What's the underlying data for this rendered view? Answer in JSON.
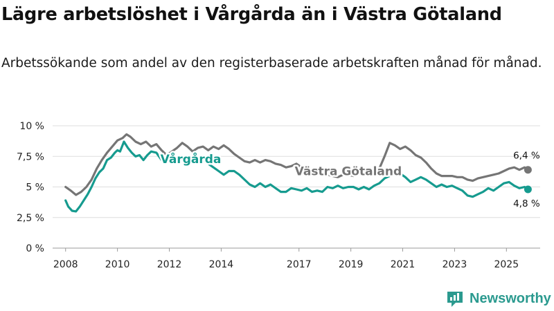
{
  "title": "Lägre arbetslöshet i Vårgårda än i Västra Götaland",
  "subtitle": "Arbetssökande som andel av den registerbaserade arbetskraften månad för månad.",
  "brand": {
    "name": "Newsworthy",
    "color": "#2b9a8f"
  },
  "chart_data": {
    "type": "line",
    "title": "Lägre arbetslöshet i Vårgårda än i Västra Götaland",
    "xlabel": "",
    "ylabel": "",
    "ylim": [
      0,
      10
    ],
    "xlim": [
      2007.5,
      2026.3
    ],
    "grid": "horizontal",
    "y_ticks": [
      {
        "value": 0,
        "label": "0 %"
      },
      {
        "value": 2.5,
        "label": "2,5 %"
      },
      {
        "value": 5,
        "label": "5 %"
      },
      {
        "value": 7.5,
        "label": "7,5 %"
      },
      {
        "value": 10,
        "label": "10 %"
      }
    ],
    "x_ticks": [
      {
        "value": 2008,
        "label": "2008"
      },
      {
        "value": 2010,
        "label": "2010"
      },
      {
        "value": 2012,
        "label": "2012"
      },
      {
        "value": 2014,
        "label": "2014"
      },
      {
        "value": 2017,
        "label": "2017"
      },
      {
        "value": 2019,
        "label": "2019"
      },
      {
        "value": 2021,
        "label": "2021"
      },
      {
        "value": 2023,
        "label": "2023"
      },
      {
        "value": 2025,
        "label": "2025"
      }
    ],
    "series": [
      {
        "name": "Västra Götaland",
        "color": "#757575",
        "end_label": "6,4 %",
        "points": [
          [
            2008.0,
            5.0
          ],
          [
            2008.2,
            4.7
          ],
          [
            2008.4,
            4.35
          ],
          [
            2008.6,
            4.6
          ],
          [
            2008.8,
            5.0
          ],
          [
            2009.0,
            5.6
          ],
          [
            2009.2,
            6.5
          ],
          [
            2009.4,
            7.2
          ],
          [
            2009.6,
            7.8
          ],
          [
            2009.8,
            8.3
          ],
          [
            2010.0,
            8.8
          ],
          [
            2010.2,
            9.0
          ],
          [
            2010.35,
            9.3
          ],
          [
            2010.5,
            9.1
          ],
          [
            2010.7,
            8.7
          ],
          [
            2010.9,
            8.5
          ],
          [
            2011.1,
            8.7
          ],
          [
            2011.3,
            8.3
          ],
          [
            2011.5,
            8.5
          ],
          [
            2011.7,
            8.0
          ],
          [
            2011.9,
            7.6
          ],
          [
            2012.1,
            7.9
          ],
          [
            2012.3,
            8.2
          ],
          [
            2012.5,
            8.6
          ],
          [
            2012.7,
            8.3
          ],
          [
            2012.9,
            7.9
          ],
          [
            2013.1,
            8.2
          ],
          [
            2013.3,
            8.3
          ],
          [
            2013.5,
            8.0
          ],
          [
            2013.7,
            8.3
          ],
          [
            2013.9,
            8.1
          ],
          [
            2014.1,
            8.4
          ],
          [
            2014.3,
            8.1
          ],
          [
            2014.5,
            7.7
          ],
          [
            2014.7,
            7.4
          ],
          [
            2014.9,
            7.1
          ],
          [
            2015.1,
            7.0
          ],
          [
            2015.3,
            7.2
          ],
          [
            2015.5,
            7.0
          ],
          [
            2015.7,
            7.2
          ],
          [
            2015.9,
            7.1
          ],
          [
            2016.1,
            6.9
          ],
          [
            2016.3,
            6.8
          ],
          [
            2016.5,
            6.6
          ],
          [
            2016.7,
            6.7
          ],
          [
            2016.9,
            6.9
          ],
          [
            2017.1,
            6.6
          ],
          [
            2017.3,
            6.5
          ],
          [
            2017.5,
            6.4
          ],
          [
            2017.7,
            6.3
          ],
          [
            2017.9,
            6.2
          ],
          [
            2018.1,
            6.0
          ],
          [
            2018.3,
            5.9
          ],
          [
            2018.5,
            5.8
          ],
          [
            2018.7,
            6.0
          ],
          [
            2018.9,
            6.0
          ],
          [
            2019.1,
            5.9
          ],
          [
            2019.3,
            6.2
          ],
          [
            2019.5,
            6.3
          ],
          [
            2019.7,
            6.5
          ],
          [
            2019.9,
            6.4
          ],
          [
            2020.1,
            6.5
          ],
          [
            2020.3,
            7.5
          ],
          [
            2020.5,
            8.6
          ],
          [
            2020.7,
            8.4
          ],
          [
            2020.9,
            8.1
          ],
          [
            2021.1,
            8.3
          ],
          [
            2021.3,
            8.0
          ],
          [
            2021.5,
            7.6
          ],
          [
            2021.7,
            7.4
          ],
          [
            2021.9,
            7.0
          ],
          [
            2022.1,
            6.5
          ],
          [
            2022.3,
            6.1
          ],
          [
            2022.5,
            5.9
          ],
          [
            2022.7,
            5.9
          ],
          [
            2022.9,
            5.9
          ],
          [
            2023.1,
            5.8
          ],
          [
            2023.3,
            5.8
          ],
          [
            2023.5,
            5.6
          ],
          [
            2023.7,
            5.5
          ],
          [
            2023.9,
            5.7
          ],
          [
            2024.1,
            5.8
          ],
          [
            2024.3,
            5.9
          ],
          [
            2024.5,
            6.0
          ],
          [
            2024.7,
            6.1
          ],
          [
            2024.9,
            6.3
          ],
          [
            2025.1,
            6.5
          ],
          [
            2025.3,
            6.6
          ],
          [
            2025.5,
            6.4
          ],
          [
            2025.7,
            6.6
          ],
          [
            2025.83,
            6.4
          ]
        ]
      },
      {
        "name": "Vårgårda",
        "color": "#169b8f",
        "end_label": "4,8 %",
        "points": [
          [
            2008.0,
            3.9
          ],
          [
            2008.1,
            3.4
          ],
          [
            2008.25,
            3.05
          ],
          [
            2008.4,
            3.0
          ],
          [
            2008.55,
            3.4
          ],
          [
            2008.7,
            3.9
          ],
          [
            2008.85,
            4.4
          ],
          [
            2009.0,
            5.0
          ],
          [
            2009.15,
            5.7
          ],
          [
            2009.3,
            6.2
          ],
          [
            2009.45,
            6.5
          ],
          [
            2009.6,
            7.2
          ],
          [
            2009.75,
            7.4
          ],
          [
            2009.9,
            7.8
          ],
          [
            2010.0,
            8.0
          ],
          [
            2010.1,
            7.9
          ],
          [
            2010.25,
            8.7
          ],
          [
            2010.4,
            8.2
          ],
          [
            2010.55,
            7.8
          ],
          [
            2010.7,
            7.5
          ],
          [
            2010.85,
            7.6
          ],
          [
            2011.0,
            7.2
          ],
          [
            2011.15,
            7.6
          ],
          [
            2011.3,
            7.9
          ],
          [
            2011.5,
            7.8
          ],
          [
            2011.7,
            7.2
          ],
          [
            2011.9,
            7.1
          ],
          [
            2012.1,
            7.3
          ],
          [
            2012.3,
            7.4
          ],
          [
            2012.5,
            7.2
          ],
          [
            2012.7,
            7.0
          ],
          [
            2012.9,
            7.0
          ],
          [
            2013.1,
            7.3
          ],
          [
            2013.3,
            7.2
          ],
          [
            2013.5,
            6.9
          ],
          [
            2013.7,
            6.6
          ],
          [
            2013.9,
            6.3
          ],
          [
            2014.1,
            6.0
          ],
          [
            2014.3,
            6.3
          ],
          [
            2014.5,
            6.3
          ],
          [
            2014.7,
            6.0
          ],
          [
            2014.9,
            5.6
          ],
          [
            2015.1,
            5.2
          ],
          [
            2015.3,
            5.0
          ],
          [
            2015.5,
            5.3
          ],
          [
            2015.7,
            5.0
          ],
          [
            2015.9,
            5.2
          ],
          [
            2016.1,
            4.9
          ],
          [
            2016.3,
            4.6
          ],
          [
            2016.5,
            4.6
          ],
          [
            2016.7,
            4.9
          ],
          [
            2016.9,
            4.8
          ],
          [
            2017.1,
            4.7
          ],
          [
            2017.3,
            4.9
          ],
          [
            2017.5,
            4.6
          ],
          [
            2017.7,
            4.7
          ],
          [
            2017.9,
            4.6
          ],
          [
            2018.1,
            5.0
          ],
          [
            2018.3,
            4.9
          ],
          [
            2018.5,
            5.1
          ],
          [
            2018.7,
            4.9
          ],
          [
            2018.9,
            5.0
          ],
          [
            2019.1,
            5.0
          ],
          [
            2019.3,
            4.8
          ],
          [
            2019.5,
            5.0
          ],
          [
            2019.7,
            4.8
          ],
          [
            2019.9,
            5.1
          ],
          [
            2020.1,
            5.3
          ],
          [
            2020.3,
            5.7
          ],
          [
            2020.5,
            5.9
          ],
          [
            2020.7,
            6.0
          ],
          [
            2020.9,
            6.1
          ],
          [
            2021.1,
            5.8
          ],
          [
            2021.3,
            5.4
          ],
          [
            2021.5,
            5.6
          ],
          [
            2021.7,
            5.8
          ],
          [
            2021.9,
            5.6
          ],
          [
            2022.1,
            5.3
          ],
          [
            2022.3,
            5.0
          ],
          [
            2022.5,
            5.2
          ],
          [
            2022.7,
            5.0
          ],
          [
            2022.9,
            5.1
          ],
          [
            2023.1,
            4.9
          ],
          [
            2023.3,
            4.7
          ],
          [
            2023.5,
            4.3
          ],
          [
            2023.7,
            4.2
          ],
          [
            2023.9,
            4.4
          ],
          [
            2024.1,
            4.6
          ],
          [
            2024.3,
            4.9
          ],
          [
            2024.5,
            4.7
          ],
          [
            2024.7,
            5.0
          ],
          [
            2024.9,
            5.3
          ],
          [
            2025.1,
            5.4
          ],
          [
            2025.3,
            5.1
          ],
          [
            2025.5,
            4.9
          ],
          [
            2025.7,
            5.0
          ],
          [
            2025.83,
            4.8
          ]
        ]
      }
    ]
  }
}
